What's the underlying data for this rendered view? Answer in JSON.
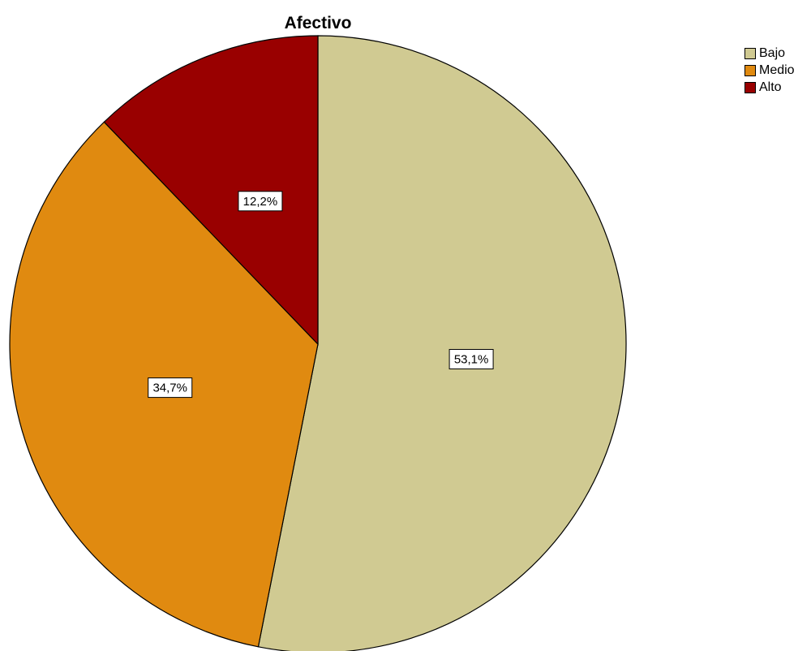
{
  "chart_data": {
    "type": "pie",
    "title": "Afectivo",
    "legend_position": "top-right",
    "slices": [
      {
        "name": "Bajo",
        "value": 53.1,
        "label": "53,1%",
        "color": "#D0CA92"
      },
      {
        "name": "Medio",
        "value": 34.7,
        "label": "34,7%",
        "color": "#E08A10"
      },
      {
        "name": "Alto",
        "value": 12.2,
        "label": "12,2%",
        "color": "#990000"
      }
    ]
  }
}
